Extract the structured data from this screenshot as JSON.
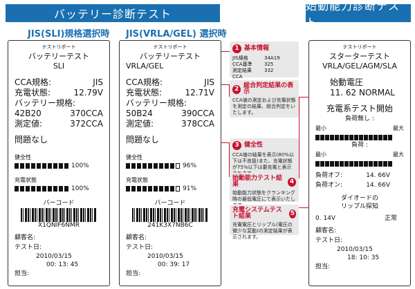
{
  "left_banner": "バッテリー診断テスト",
  "right_banner": "始動能力診断テスト",
  "sub_jis": "JIS(SLI)規格選択時",
  "sub_vrla": "JIS(VRLA/GEL) 選択時",
  "r1": {
    "top": "テストリポート",
    "title": "バッテリーテスト",
    "sub": "SLI",
    "rows": [
      [
        "CCA規格:",
        "JIS"
      ],
      [
        "充電状態:",
        "12.79V"
      ]
    ],
    "spec_label": "バッテリー規格:",
    "spec_rows": [
      [
        "42B20",
        "370CCA"
      ],
      [
        "測定値:",
        "372CCA"
      ]
    ],
    "result": "問題なし",
    "health": "健全性",
    "health_pct": "100%",
    "charge": "充電状態",
    "charge_pct": "100%",
    "barcode_label": "バーコード",
    "barcode": "X1QNIF6NMR",
    "customer": "顧客名:",
    "test_date": "テスト日:",
    "date": "2010/03/15",
    "time": "00: 13: 45",
    "staff": "担当:"
  },
  "r2": {
    "top": "テストリポート",
    "title": "バッテリーテスト",
    "sub": "VRLA/GEL",
    "rows": [
      [
        "CCA規格:",
        "JIS"
      ],
      [
        "充電状態:",
        "12.71V"
      ]
    ],
    "spec_label": "バッテリー規格:",
    "spec_rows": [
      [
        "50B24",
        "390CCA"
      ],
      [
        "測定値:",
        "378CCA"
      ]
    ],
    "result": "問題なし",
    "health": "健全性",
    "health_pct": "96%",
    "charge": "充電状態",
    "charge_pct": "91%",
    "barcode_label": "バーコード",
    "barcode": "241K3X7NB6C",
    "customer": "顧客名:",
    "test_date": "テスト日:",
    "date": "2010/03/15",
    "time": "00: 39: 17",
    "staff": "担当:"
  },
  "r3": {
    "top": "テストリポート",
    "title": "スターターテスト",
    "sub": "VRLA/GEL/AGM/SLA",
    "crank_label": "始動電圧",
    "crank_val": "11. 62 NORMAL",
    "charge_test": "充電系テスト開始",
    "no_load": "負荷無し :",
    "min": "最小",
    "max": "最大",
    "load": "負荷 :",
    "load_off": "負荷オフ:",
    "load_off_v": "14. 66V",
    "load_on": "負荷オン:",
    "load_on_v": "14. 66V",
    "diode1": "ダイオードの",
    "diode2": "リップル探知",
    "ripple_v": "0. 14V",
    "ripple_s": "正常",
    "customer": "顧客名:",
    "test_date": "テスト日:",
    "date": "2010/03/15",
    "time": "18: 10: 35",
    "staff": "担当:"
  },
  "c1": {
    "num": "1",
    "head": "基本情報",
    "kv": [
      [
        "JIS規格",
        "34A19"
      ],
      [
        "CCA基準",
        "325"
      ],
      [
        "測定結果",
        "332"
      ],
      [
        "CCA",
        ""
      ]
    ]
  },
  "c2": {
    "num": "2",
    "head": "総合判定結果の表示",
    "text": "CCA値の測定および充電状態を測定の結果、総合判定をいたします。"
  },
  "c3": {
    "num": "3",
    "head": "健全性",
    "text": "CCA値の結果を表示(80%以下は不良扱)また、充電状態が75%以下は要充電と表示されます。"
  },
  "c4": {
    "num": "4",
    "head": "始動能力テスト結果",
    "text": "始動能力状態をクランキング時の最低電圧にて表示いたします。"
  },
  "c5": {
    "num": "5",
    "head": "充電システムテスト結果",
    "text": "充電電圧とリップル(電圧の微少な変動)の測定結果が表示されます。"
  }
}
